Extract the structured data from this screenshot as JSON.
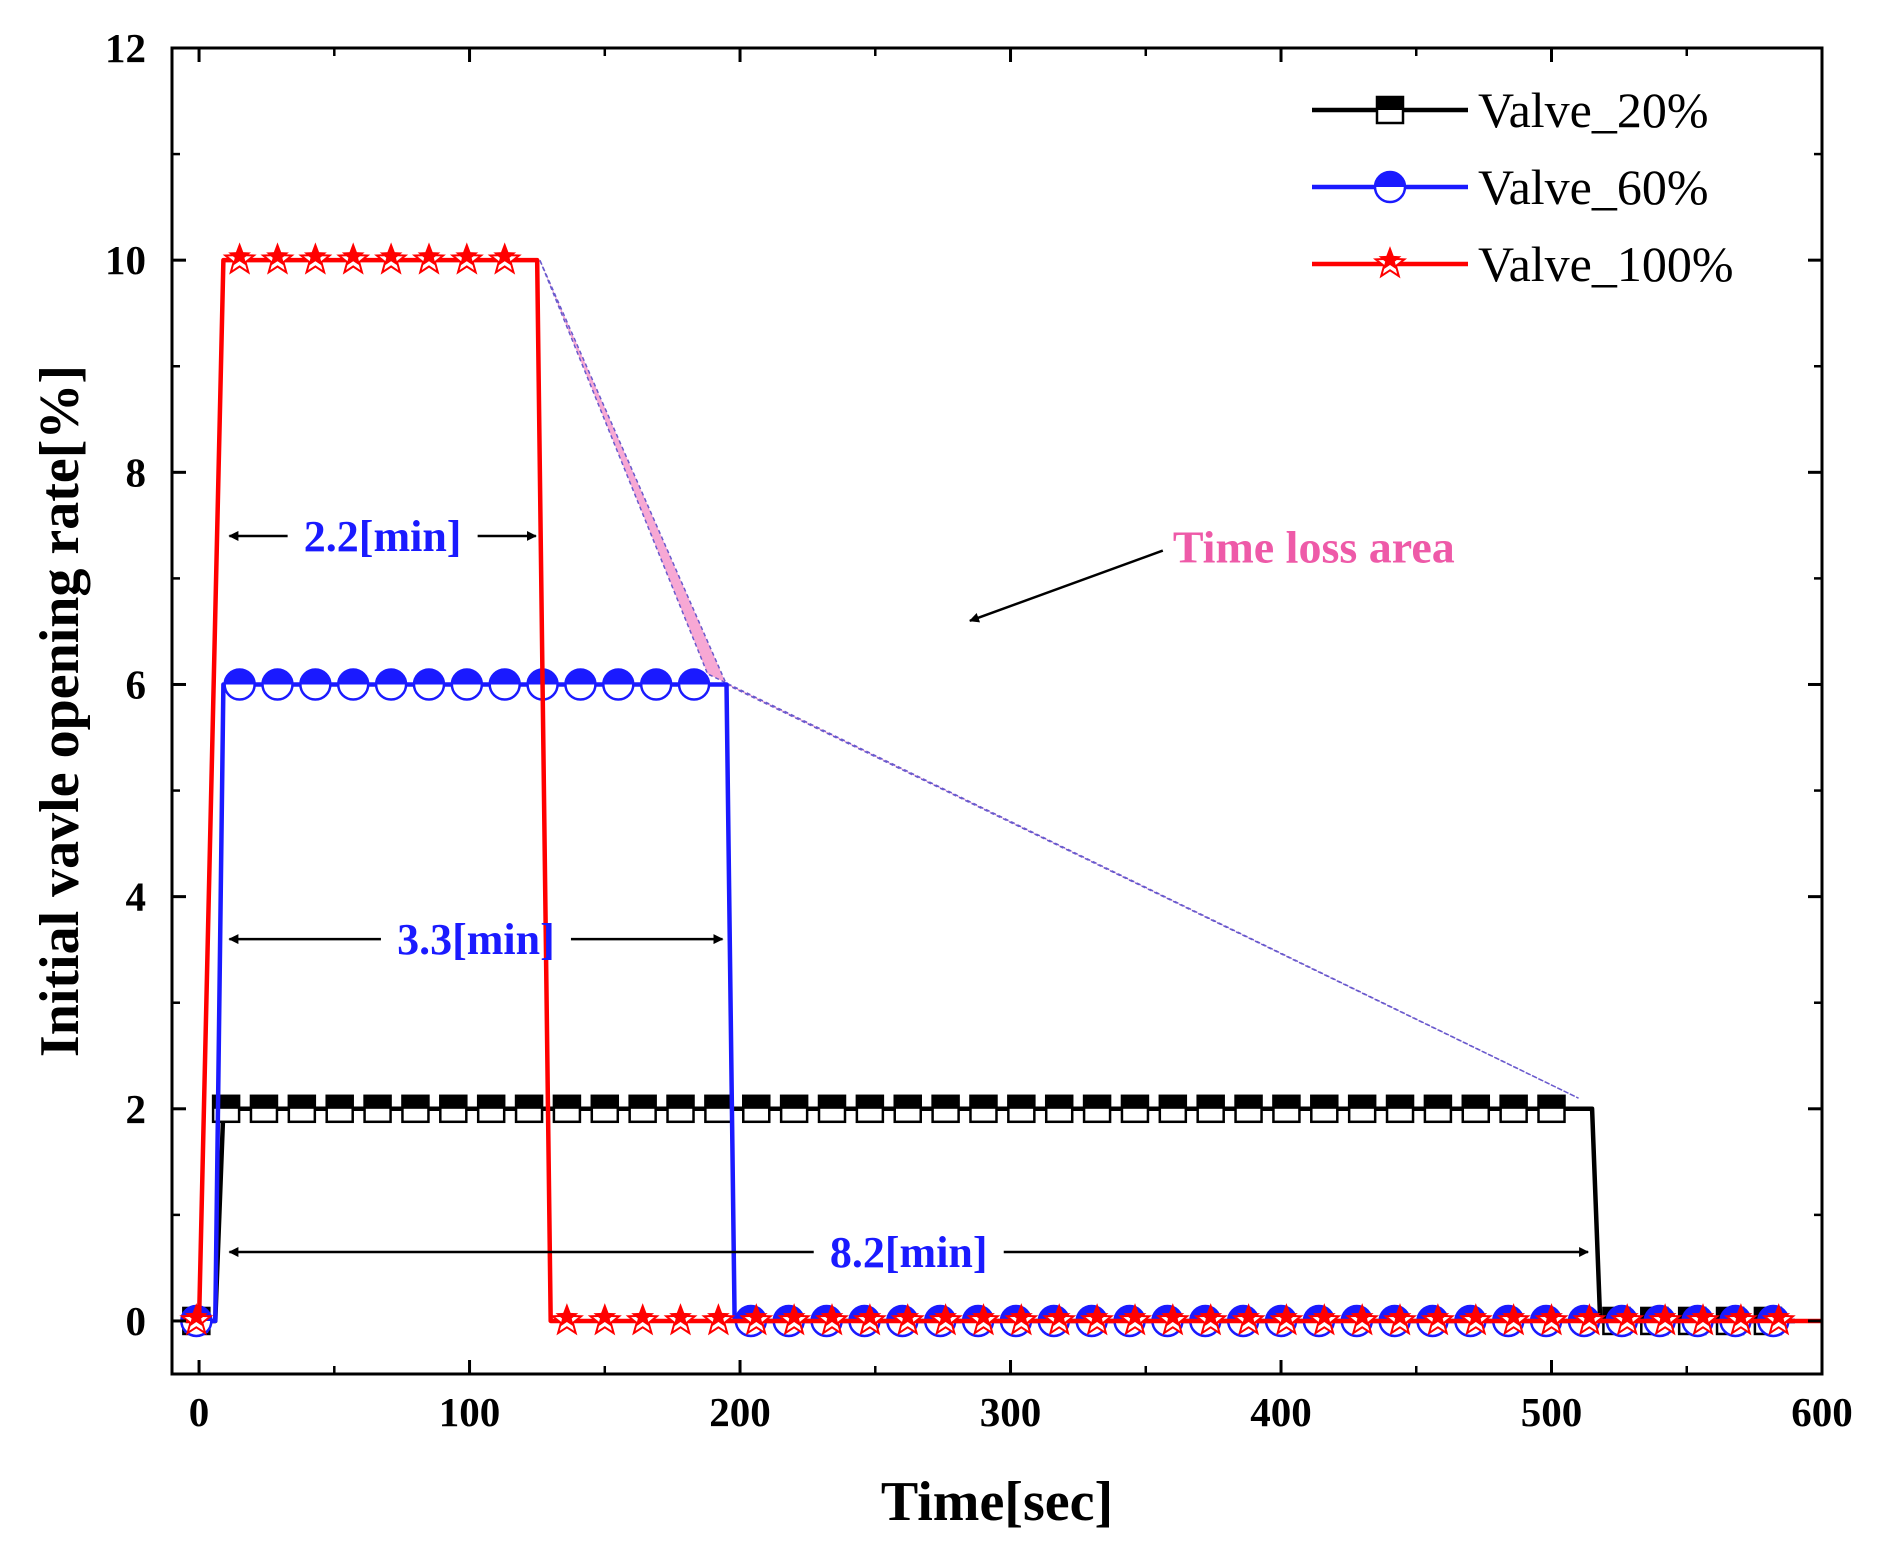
{
  "chart_data": {
    "type": "line",
    "title": "",
    "xlabel": "Time[sec]",
    "ylabel": "Initial vavle opening rate[%]",
    "xlim": [
      -10,
      600
    ],
    "ylim": [
      -0.5,
      12
    ],
    "xticks": [
      0,
      100,
      200,
      300,
      400,
      500,
      600
    ],
    "xtick_labels": [
      "0",
      "100",
      "200",
      "300",
      "400",
      "500",
      "600"
    ],
    "yticks": [
      0,
      2,
      4,
      6,
      8,
      10,
      12
    ],
    "ytick_labels": [
      "0",
      "2",
      "4",
      "6",
      "8",
      "10",
      "12"
    ],
    "legend_position": "top-right",
    "series": [
      {
        "name": "Valve_20%",
        "color": "#000000",
        "marker": "square",
        "x": [
          -5,
          6,
          9,
          515,
          518,
          525,
          590
        ],
        "y": [
          0,
          0,
          2,
          2,
          0,
          0,
          0
        ],
        "marker_x_start": 10,
        "marker_x_end": 510,
        "marker_step": 14,
        "marker_y_plateau": 2
      },
      {
        "name": "Valve_60%",
        "color": "#1a1aff",
        "marker": "circle",
        "x": [
          -5,
          6,
          9,
          195,
          198,
          205,
          590
        ],
        "y": [
          0,
          0,
          6,
          6,
          0,
          0,
          0
        ],
        "marker_x_start": 15,
        "marker_x_end": 190,
        "marker_step": 14,
        "marker_y_plateau": 6
      },
      {
        "name": "Valve_100%",
        "color": "#ff0000",
        "marker": "star",
        "x": [
          -5,
          0,
          9,
          125,
          130,
          135,
          600
        ],
        "y": [
          0,
          0,
          10,
          10,
          0,
          0,
          0
        ],
        "marker_x_start": 15,
        "marker_x_end": 125,
        "marker_step": 14,
        "marker_y_plateau": 10
      }
    ],
    "shaded_region": {
      "label": "Time loss area",
      "color": "#f7a8d4",
      "points": [
        [
          126,
          10
        ],
        [
          188,
          6.1
        ],
        [
          510,
          2.1
        ],
        [
          195,
          6
        ]
      ]
    },
    "annotations": [
      {
        "text": "2.2[min]",
        "x_start": 9,
        "x_end": 126,
        "y": 7.4
      },
      {
        "text": "3.3[min]",
        "x_start": 9,
        "x_end": 195,
        "y": 3.6
      },
      {
        "text": "8.2[min]",
        "x_start": 9,
        "x_end": 515,
        "y": 0.65
      }
    ],
    "callout": {
      "text": "Time loss area",
      "text_x": 360,
      "text_y": 7.3,
      "arrow_to_x": 285,
      "arrow_to_y": 6.6
    }
  }
}
